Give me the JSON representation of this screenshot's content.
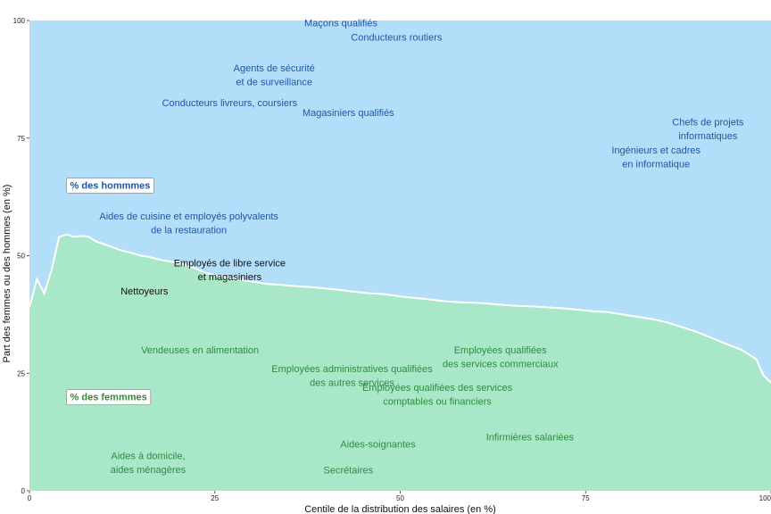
{
  "chart_data": {
    "type": "area",
    "xlabel": "Centile de la distribution des salaires (en %)",
    "ylabel": "Part des femmes ou des hommes (en %)",
    "xlim": [
      0,
      100
    ],
    "ylim": [
      0,
      100
    ],
    "xticks": [
      0,
      25,
      50,
      75,
      100
    ],
    "yticks": [
      0,
      25,
      50,
      75,
      100
    ],
    "grid": false,
    "colors": {
      "hommes": "#b3defa",
      "femmes": "#a8e8c8",
      "boundary": "#ffffff",
      "hommes_text": "#2255a0",
      "femmes_text": "#2e8b3e",
      "neutral_text": "#111111"
    },
    "series": [
      {
        "name": "% des femmmes",
        "x": [
          0,
          1,
          2,
          3,
          4,
          5,
          6,
          7,
          8,
          9,
          10,
          12,
          14,
          15,
          16,
          18,
          20,
          22,
          24,
          26,
          28,
          30,
          32,
          34,
          36,
          38,
          40,
          42,
          44,
          46,
          48,
          50,
          52,
          54,
          56,
          58,
          60,
          62,
          64,
          66,
          68,
          70,
          72,
          74,
          76,
          78,
          80,
          82,
          84,
          86,
          88,
          90,
          92,
          94,
          96,
          98,
          99,
          100
        ],
        "values": [
          39,
          45,
          42,
          47,
          54,
          54.5,
          54,
          54.2,
          54,
          53,
          52.5,
          51.3,
          50.5,
          50,
          49.8,
          49,
          48.5,
          47.5,
          46.2,
          45.5,
          45,
          44.5,
          44,
          43.8,
          43.5,
          43.3,
          43,
          42.7,
          42.3,
          42,
          41.8,
          41.3,
          41,
          40.7,
          40.3,
          40.1,
          40,
          39.8,
          39.5,
          39.3,
          39.2,
          39,
          38.8,
          38.5,
          38.2,
          38,
          37.5,
          37,
          36.5,
          35.8,
          34.8,
          33.8,
          32.5,
          31.2,
          30,
          28,
          24.5,
          23
        ]
      }
    ],
    "legend": [
      {
        "label": "% des hommmes",
        "group": "hommes"
      },
      {
        "label": "% des femmmes",
        "group": "femmes"
      }
    ],
    "annotations": [
      {
        "lines": [
          "Maçons qualifiés"
        ],
        "x": 42,
        "y": 99.5,
        "group": "hommes"
      },
      {
        "lines": [
          "Conducteurs routiers"
        ],
        "x": 49.5,
        "y": 96.5,
        "group": "hommes"
      },
      {
        "lines": [
          "Agents de sécurité",
          "et de surveillance"
        ],
        "x": 33,
        "y": 88.5,
        "group": "hommes"
      },
      {
        "lines": [
          "Conducteurs livreurs, coursiers"
        ],
        "x": 27,
        "y": 82.5,
        "group": "hommes"
      },
      {
        "lines": [
          "Magasiniers qualifiés"
        ],
        "x": 43,
        "y": 80.5,
        "group": "hommes"
      },
      {
        "lines": [
          "Chefs de projets",
          "informatiques"
        ],
        "x": 91.5,
        "y": 77,
        "group": "hommes"
      },
      {
        "lines": [
          "Ingénieurs et cadres",
          "en informatique"
        ],
        "x": 84.5,
        "y": 71,
        "group": "hommes"
      },
      {
        "lines": [
          "Aides de cuisine et employés polyvalents",
          "de la restauration"
        ],
        "x": 21.5,
        "y": 57,
        "group": "hommes"
      },
      {
        "lines": [
          "Employés de libre service",
          "et magasiniers"
        ],
        "x": 27,
        "y": 47,
        "group": "neutral"
      },
      {
        "lines": [
          "Nettoyeurs"
        ],
        "x": 15.5,
        "y": 42.5,
        "group": "neutral"
      },
      {
        "lines": [
          "Vendeuses en alimentation"
        ],
        "x": 23,
        "y": 30,
        "group": "femmes"
      },
      {
        "lines": [
          "Employées qualifiées",
          "des services commerciaux"
        ],
        "x": 63.5,
        "y": 28.5,
        "group": "femmes"
      },
      {
        "lines": [
          "Employées administratives qualifiées",
          "des autres services"
        ],
        "x": 43.5,
        "y": 24.5,
        "group": "femmes"
      },
      {
        "lines": [
          "Employées qualifiées des services",
          "comptables ou financiers"
        ],
        "x": 55,
        "y": 20.5,
        "group": "femmes"
      },
      {
        "lines": [
          "Infirmières salariées"
        ],
        "x": 67.5,
        "y": 11.5,
        "group": "femmes"
      },
      {
        "lines": [
          "Aides-soignantes"
        ],
        "x": 47,
        "y": 10,
        "group": "femmes"
      },
      {
        "lines": [
          "Aides à domicile,",
          "aides ménagères"
        ],
        "x": 16,
        "y": 6,
        "group": "femmes"
      },
      {
        "lines": [
          "Secrétaires"
        ],
        "x": 43,
        "y": 4.5,
        "group": "femmes"
      }
    ]
  }
}
